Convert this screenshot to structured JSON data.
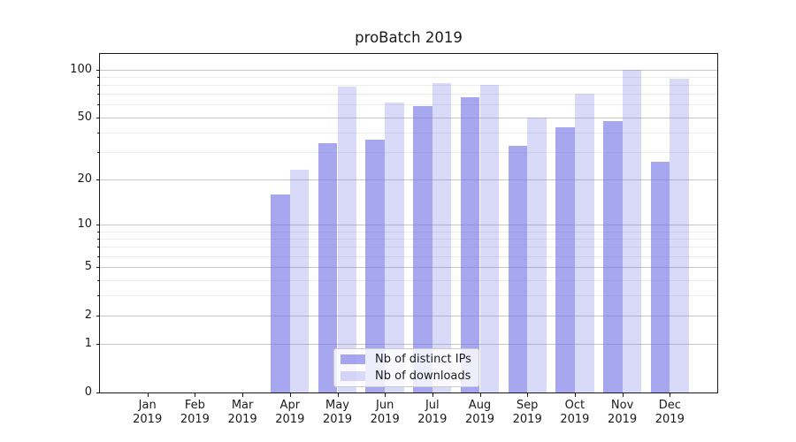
{
  "chart_data": {
    "type": "bar",
    "title": "proBatch 2019",
    "categories": [
      "Jan",
      "Feb",
      "Mar",
      "Apr",
      "May",
      "Jun",
      "Jul",
      "Aug",
      "Sep",
      "Oct",
      "Nov",
      "Dec"
    ],
    "year_label": "2019",
    "series": [
      {
        "name": "Nb of distinct IPs",
        "color": "rgba(120,120,230,0.65)",
        "values": [
          0,
          0,
          0,
          16,
          34,
          36,
          59,
          67,
          33,
          43,
          47,
          26
        ]
      },
      {
        "name": "Nb of downloads",
        "color": "rgba(120,120,230,0.28)",
        "values": [
          0,
          0,
          0,
          23,
          78,
          62,
          82,
          80,
          50,
          70,
          100,
          87
        ]
      }
    ],
    "y_ticks": [
      0,
      1,
      2,
      5,
      10,
      20,
      50,
      100
    ],
    "y_minor_ticks": [
      3,
      4,
      6,
      7,
      8,
      9,
      30,
      40,
      60,
      70,
      80,
      90
    ],
    "ylim": [
      0,
      125
    ],
    "yscale": "log1p",
    "xlabel": "",
    "ylabel": "",
    "grid": true,
    "legend_position": "lower center",
    "colors": {
      "spine": "#1a1a1a",
      "grid_major": "#c6c6c6",
      "grid_minor": "#ececec",
      "background": "#ffffff"
    }
  }
}
